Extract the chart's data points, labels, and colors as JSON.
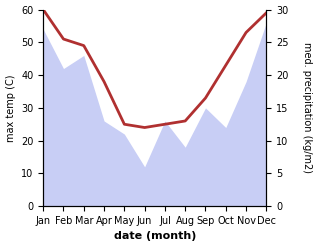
{
  "months": [
    "Jan",
    "Feb",
    "Mar",
    "Apr",
    "May",
    "Jun",
    "Jul",
    "Aug",
    "Sep",
    "Oct",
    "Nov",
    "Dec"
  ],
  "temp": [
    60,
    51,
    49,
    38,
    25,
    24,
    25,
    26,
    33,
    43,
    53,
    59
  ],
  "precip_right_scale": [
    27,
    21,
    23,
    13,
    11,
    6,
    13,
    9,
    15,
    12,
    19,
    28
  ],
  "temp_color": "#b03030",
  "precip_fill_color": "#c8cef5",
  "xlabel": "date (month)",
  "ylabel_left": "max temp (C)",
  "ylabel_right": "med. precipitation (kg/m2)",
  "ylim_left": [
    0,
    60
  ],
  "ylim_right": [
    0,
    30
  ],
  "background_color": "#ffffff"
}
